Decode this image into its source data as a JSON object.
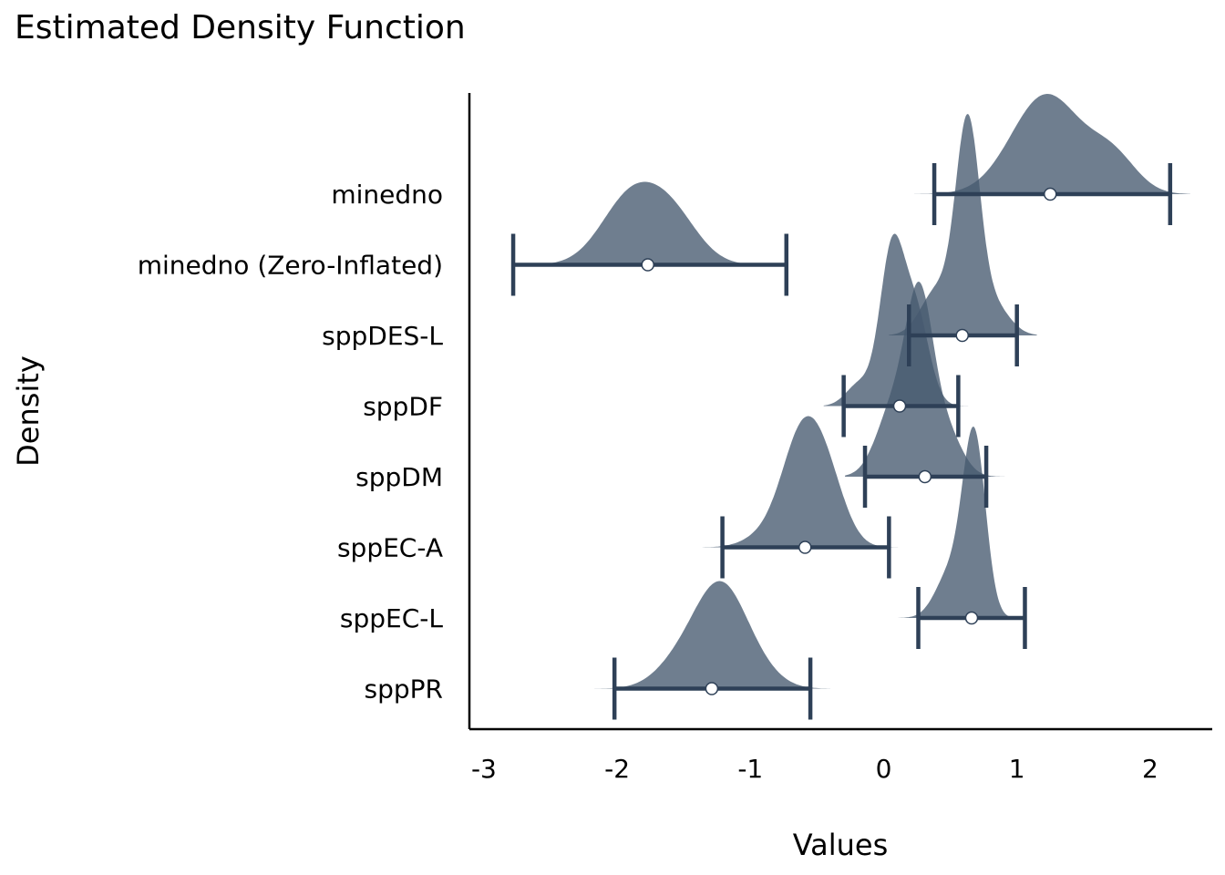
{
  "chart_data": {
    "type": "density-interval",
    "title": "Estimated Density Function",
    "xlabel": "Values",
    "ylabel": "Density",
    "xlim": [
      -3.1,
      2.47
    ],
    "x_ticks": [
      -3,
      -2,
      -1,
      0,
      1,
      2
    ],
    "x_tick_labels": [
      "-3",
      "-2",
      "-1",
      "0",
      "1",
      "2"
    ],
    "grid": false,
    "legend": "none",
    "colors": {
      "fill": "#475a70",
      "interval": "#2e4057",
      "point_fill": "#ffffff"
    },
    "series": [
      {
        "name": "minedno",
        "mode": 1.25,
        "interval": [
          0.38,
          2.15
        ],
        "density_peak_x": 1.25
      },
      {
        "name": "minedno (Zero-Inflated)",
        "mode": -1.77,
        "interval": [
          -2.78,
          -0.73
        ],
        "density_peak_x": -1.88
      },
      {
        "name": "sppDES-L",
        "mode": 0.59,
        "interval": [
          0.19,
          1.0
        ],
        "density_peak_x": 0.63
      },
      {
        "name": "sppDF",
        "mode": 0.12,
        "interval": [
          -0.3,
          0.56
        ],
        "density_peak_x": 0.09
      },
      {
        "name": "sppDM",
        "mode": 0.31,
        "interval": [
          -0.14,
          0.77
        ],
        "density_peak_x": 0.26
      },
      {
        "name": "sppEC-A",
        "mode": -0.59,
        "interval": [
          -1.21,
          0.04
        ],
        "density_peak_x": -0.6
      },
      {
        "name": "sppEC-L",
        "mode": 0.66,
        "interval": [
          0.26,
          1.06
        ],
        "density_peak_x": 0.68
      },
      {
        "name": "sppPR",
        "mode": -1.29,
        "interval": [
          -2.02,
          -0.55
        ],
        "density_peak_x": -1.25
      }
    ]
  }
}
